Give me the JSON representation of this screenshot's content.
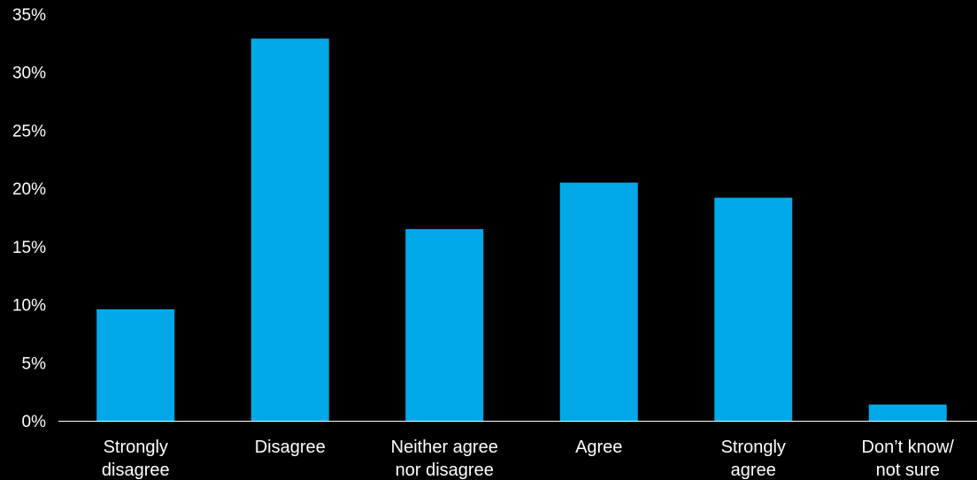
{
  "chart_data": {
    "type": "bar",
    "categories": [
      [
        "Strongly",
        "disagree"
      ],
      [
        "Disagree"
      ],
      [
        "Neither agree",
        "nor disagree"
      ],
      [
        "Agree"
      ],
      [
        "Strongly",
        "agree"
      ],
      [
        "Don’t know/",
        "not sure"
      ]
    ],
    "values": [
      9.6,
      32.9,
      16.5,
      20.5,
      19.2,
      1.4
    ],
    "title": "",
    "xlabel": "",
    "ylabel": "",
    "ylim": [
      0,
      35
    ],
    "yticks": [
      "0%",
      "5%",
      "10%",
      "15%",
      "20%",
      "25%",
      "30%",
      "35%"
    ],
    "grid": false,
    "bar_color": "#00a8e8",
    "axis_color": "#ffffff",
    "background": "#000000"
  }
}
